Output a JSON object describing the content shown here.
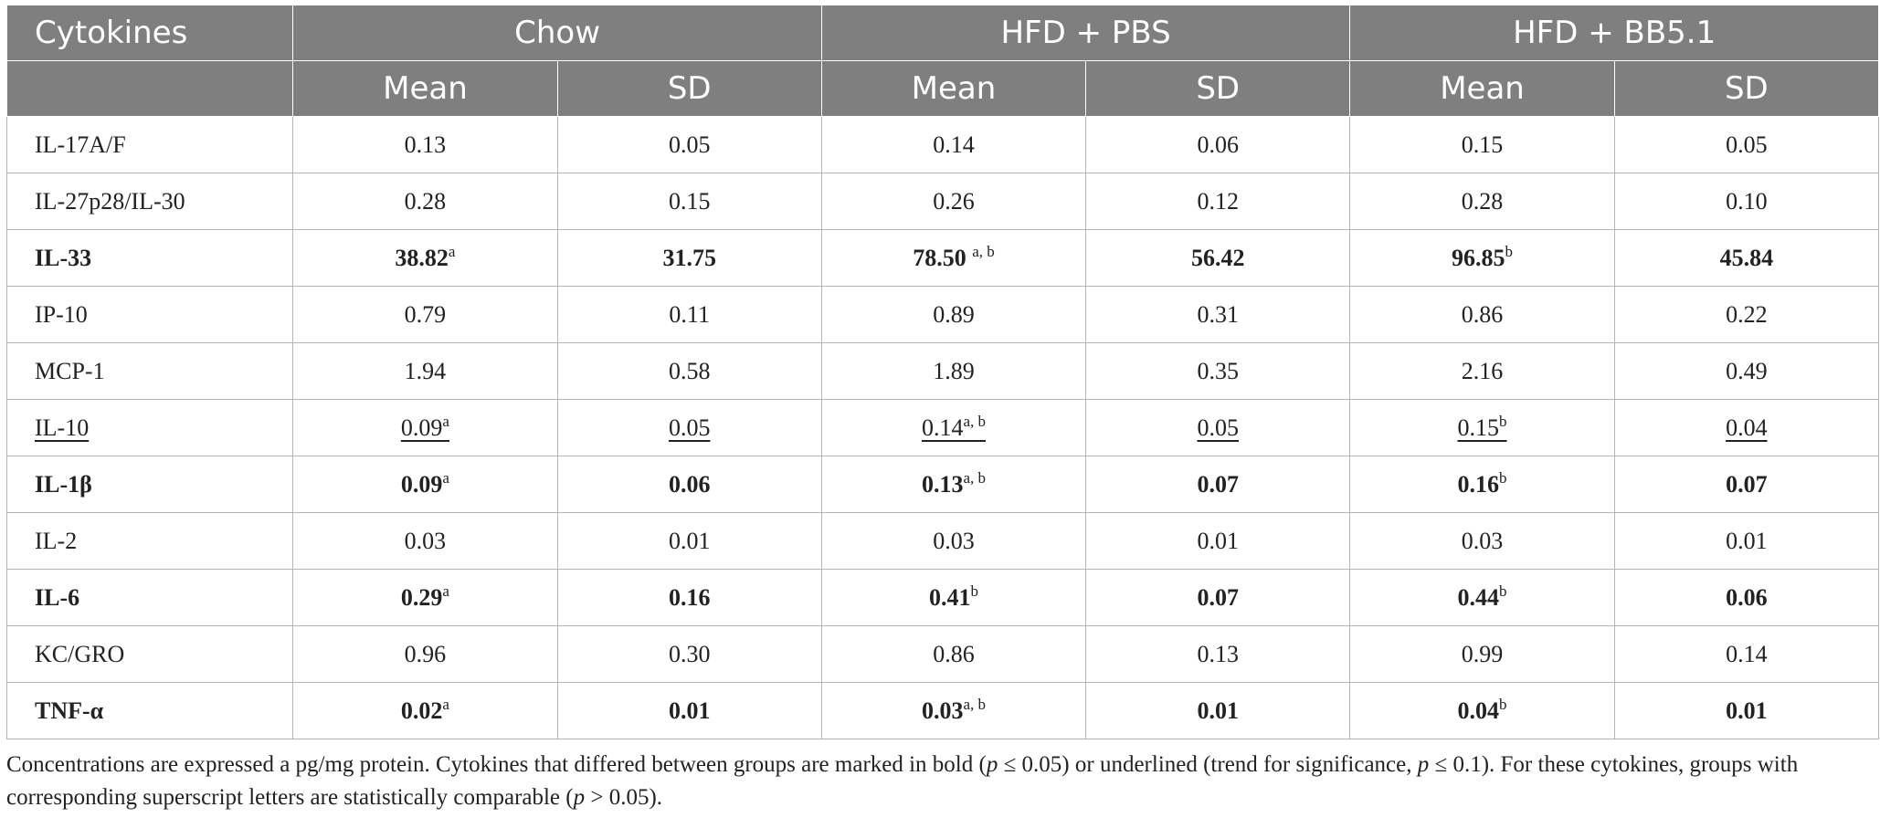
{
  "header": {
    "first_col": "Cytokines",
    "groups": [
      "Chow",
      "HFD + PBS",
      "HFD + BB5.1"
    ],
    "sub": [
      "Mean",
      "SD",
      "Mean",
      "SD",
      "Mean",
      "SD"
    ]
  },
  "rows": [
    {
      "name": "IL-17A/F",
      "style": "normal",
      "cells": [
        [
          "0.13",
          ""
        ],
        [
          "0.05",
          ""
        ],
        [
          "0.14",
          ""
        ],
        [
          "0.06",
          ""
        ],
        [
          "0.15",
          ""
        ],
        [
          "0.05",
          ""
        ]
      ]
    },
    {
      "name": "IL-27p28/IL-30",
      "style": "normal",
      "cells": [
        [
          "0.28",
          ""
        ],
        [
          "0.15",
          ""
        ],
        [
          "0.26",
          ""
        ],
        [
          "0.12",
          ""
        ],
        [
          "0.28",
          ""
        ],
        [
          "0.10",
          ""
        ]
      ]
    },
    {
      "name": "IL-33",
      "style": "sig",
      "cells": [
        [
          "38.82",
          "a"
        ],
        [
          "31.75",
          ""
        ],
        [
          "78.50 ",
          "a, b"
        ],
        [
          "56.42",
          ""
        ],
        [
          "96.85",
          "b"
        ],
        [
          "45.84",
          ""
        ]
      ]
    },
    {
      "name": "IP-10",
      "style": "normal",
      "cells": [
        [
          "0.79",
          ""
        ],
        [
          "0.11",
          ""
        ],
        [
          "0.89",
          ""
        ],
        [
          "0.31",
          ""
        ],
        [
          "0.86",
          ""
        ],
        [
          "0.22",
          ""
        ]
      ]
    },
    {
      "name": "MCP-1",
      "style": "normal",
      "cells": [
        [
          "1.94",
          ""
        ],
        [
          "0.58",
          ""
        ],
        [
          "1.89",
          ""
        ],
        [
          "0.35",
          ""
        ],
        [
          "2.16",
          ""
        ],
        [
          "0.49",
          ""
        ]
      ]
    },
    {
      "name": "IL-10",
      "style": "trend",
      "cells": [
        [
          "0.09",
          "a"
        ],
        [
          "0.05",
          ""
        ],
        [
          "0.14",
          "a, b"
        ],
        [
          "0.05",
          ""
        ],
        [
          "0.15",
          "b"
        ],
        [
          "0.04",
          ""
        ]
      ]
    },
    {
      "name": "IL-1β",
      "style": "sig",
      "cells": [
        [
          "0.09",
          "a"
        ],
        [
          "0.06",
          ""
        ],
        [
          "0.13",
          "a, b"
        ],
        [
          "0.07",
          ""
        ],
        [
          "0.16",
          "b"
        ],
        [
          "0.07",
          ""
        ]
      ]
    },
    {
      "name": "IL-2",
      "style": "normal",
      "cells": [
        [
          "0.03",
          ""
        ],
        [
          "0.01",
          ""
        ],
        [
          "0.03",
          ""
        ],
        [
          "0.01",
          ""
        ],
        [
          "0.03",
          ""
        ],
        [
          "0.01",
          ""
        ]
      ]
    },
    {
      "name": "IL-6",
      "style": "sig",
      "cells": [
        [
          "0.29",
          "a"
        ],
        [
          "0.16",
          ""
        ],
        [
          "0.41",
          "b"
        ],
        [
          "0.07",
          ""
        ],
        [
          "0.44",
          "b"
        ],
        [
          "0.06",
          ""
        ]
      ]
    },
    {
      "name": "KC/GRO",
      "style": "normal",
      "cells": [
        [
          "0.96",
          ""
        ],
        [
          "0.30",
          ""
        ],
        [
          "0.86",
          ""
        ],
        [
          "0.13",
          ""
        ],
        [
          "0.99",
          ""
        ],
        [
          "0.14",
          ""
        ]
      ]
    },
    {
      "name": "TNF-α",
      "style": "sig",
      "cells": [
        [
          "0.02",
          "a"
        ],
        [
          "0.01",
          ""
        ],
        [
          "0.03",
          "a, b"
        ],
        [
          "0.01",
          ""
        ],
        [
          "0.04",
          "b"
        ],
        [
          "0.01",
          ""
        ]
      ]
    }
  ],
  "footnote": {
    "t1": "Concentrations are expressed a pg/mg protein. Cytokines that differed between groups are marked in bold (",
    "p1": "p",
    "t2": " ≤ 0.05) or underlined (trend for significance, ",
    "p2": "p",
    "t3": " ≤ 0.1). For these cytokines, groups with corresponding superscript letters are statistically comparable (",
    "p3": "p",
    "t4": " > 0.05)."
  }
}
